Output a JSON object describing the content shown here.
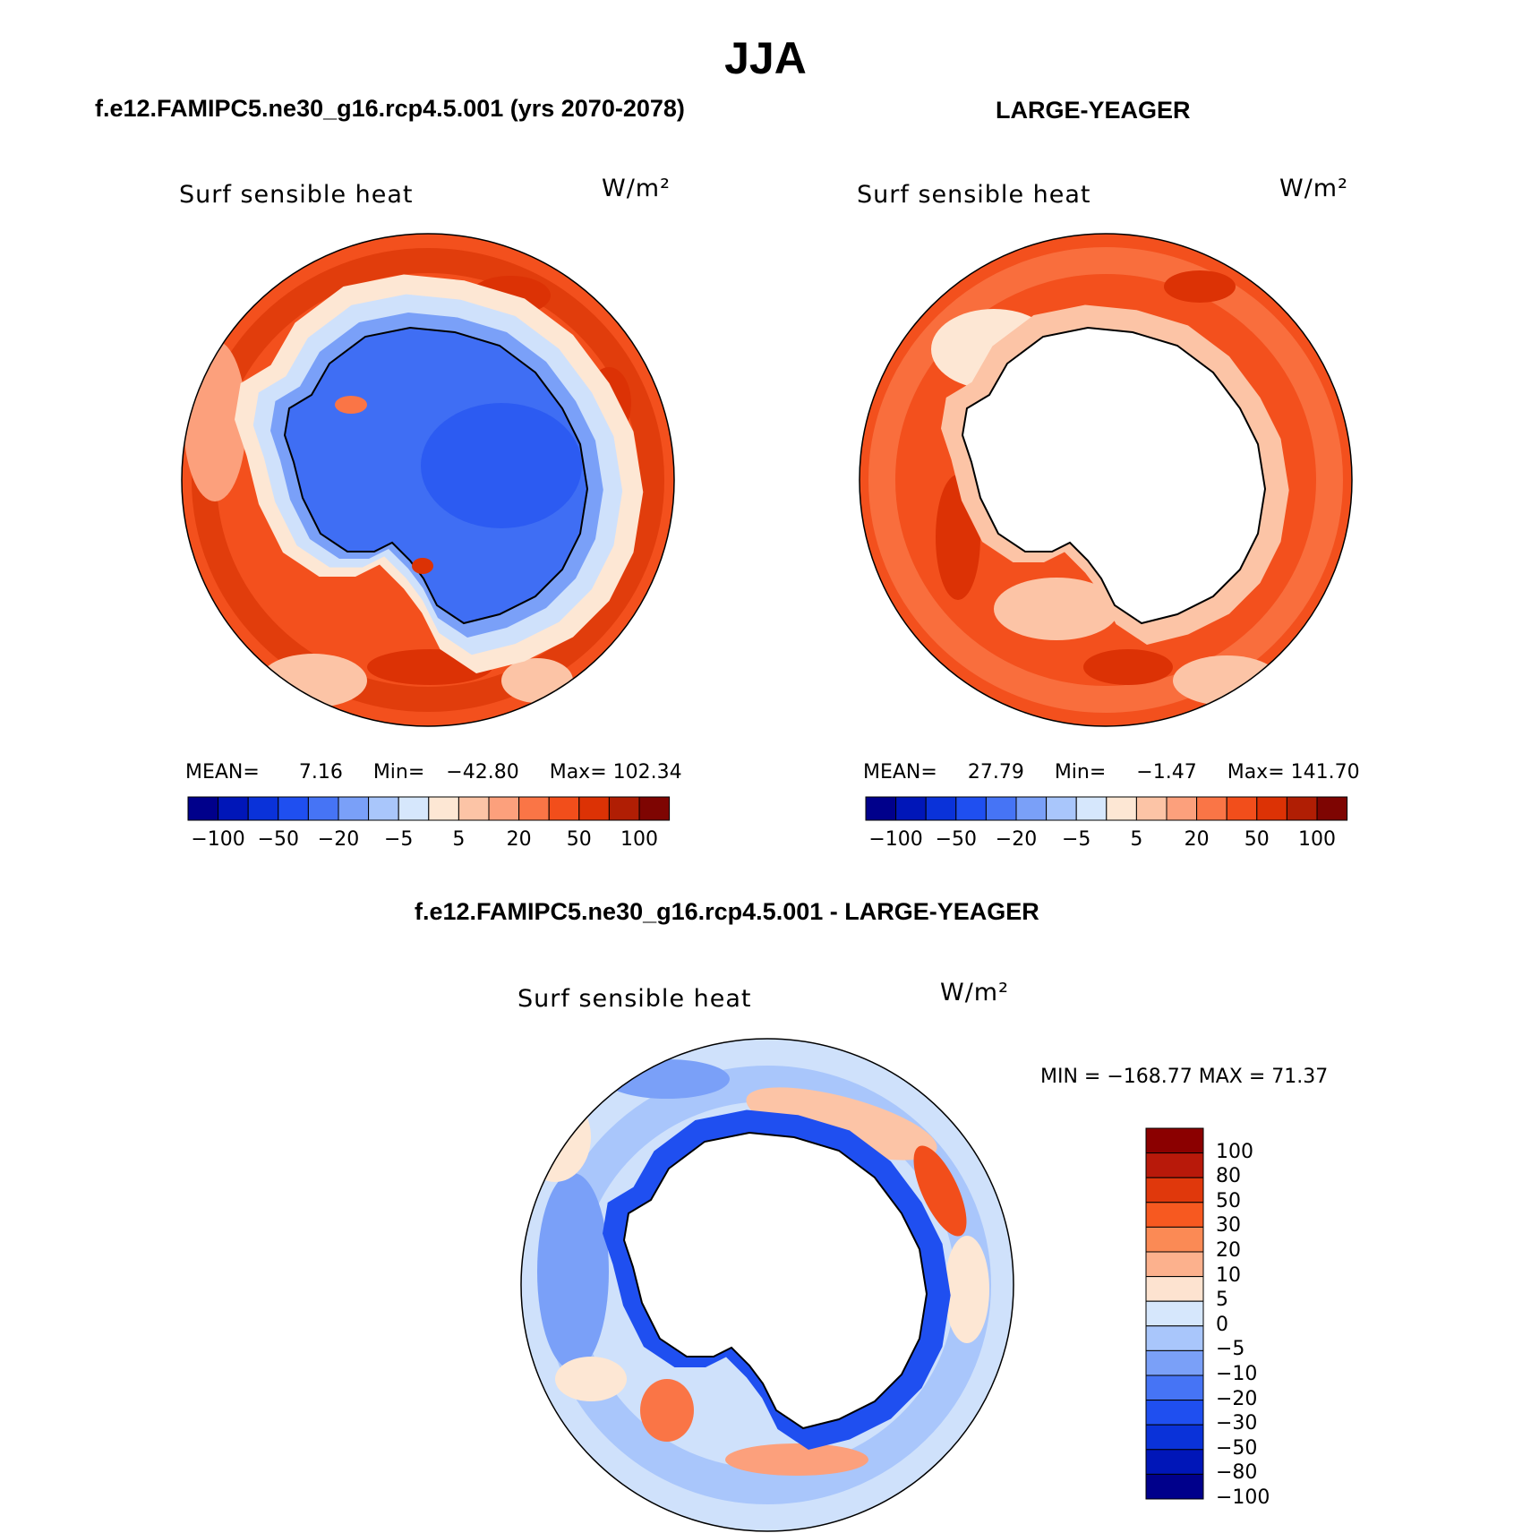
{
  "figure": {
    "title": "JJA",
    "left_title": "f.e12.FAMIPC5.ne30_g16.rcp4.5.001 (yrs 2070-2078)",
    "right_title": "LARGE-YEAGER",
    "diff_title": "f.e12.FAMIPC5.ne30_g16.rcp4.5.001 - LARGE-YEAGER"
  },
  "panels": {
    "left": {
      "variable": "Surf sensible heat",
      "units": "W/m²",
      "mean_label": "MEAN=",
      "mean": "7.16",
      "min_label": "Min=",
      "min": "−42.80",
      "max_label": "Max=",
      "max": "102.34"
    },
    "right": {
      "variable": "Surf sensible heat",
      "units": "W/m²",
      "mean_label": "MEAN=",
      "mean": "27.79",
      "min_label": "Min=",
      "min": "−1.47",
      "max_label": "Max=",
      "max": "141.70"
    },
    "diff": {
      "variable": "Surf sensible heat",
      "units": "W/m²",
      "minmax_text": "MIN = −168.77 MAX =  71.37"
    }
  },
  "horizontal_colorbar": {
    "colors": [
      "#00008b",
      "#0016b8",
      "#0a32d9",
      "#1f4ff0",
      "#4674f5",
      "#7aa0f8",
      "#a9c6fb",
      "#d6e7fc",
      "#fde7d4",
      "#fcc4a6",
      "#fca07c",
      "#fa7546",
      "#f24e1b",
      "#dc3205",
      "#b01e04",
      "#7e0502"
    ],
    "tick_labels": [
      "−100",
      "−50",
      "−20",
      "−5",
      "5",
      "20",
      "50",
      "100"
    ]
  },
  "vertical_colorbar": {
    "colors": [
      "#8b0000",
      "#b8190a",
      "#e0380c",
      "#f75920",
      "#fb8a55",
      "#fcb18d",
      "#fde3d0",
      "#d6e7fc",
      "#a9c6fb",
      "#7aa0f8",
      "#4674f5",
      "#1f4ff0",
      "#0a32d9",
      "#0016b8",
      "#00008b"
    ],
    "tick_labels": [
      "100",
      "80",
      "50",
      "30",
      "20",
      "10",
      "5",
      "0",
      "−5",
      "−10",
      "−20",
      "−30",
      "−50",
      "−80",
      "−100"
    ]
  },
  "map_colors": {
    "ocean_red": "#f3501d",
    "ocean_red_dark": "#d93406",
    "ocean_peach": "#fca07c",
    "ice_blue": "#3f6ef4",
    "ice_blue_dark": "#1f4ff0",
    "land_white": "#ffffff",
    "light_blue": "#cfe1fb",
    "light_peach": "#fde7d4",
    "coast": "#000000"
  },
  "chart_data": {
    "type": "heatmap",
    "title": "JJA",
    "projection": "south polar stereographic",
    "panels": [
      {
        "name": "f.e12.FAMIPC5.ne30_g16.rcp4.5.001 (yrs 2070-2078)",
        "variable": "Surf sensible heat",
        "units": "W/m²",
        "mean": 7.16,
        "min": -42.8,
        "max": 102.34,
        "levels": [
          -100,
          -80,
          -50,
          -30,
          -20,
          -10,
          -5,
          0,
          5,
          10,
          20,
          30,
          50,
          80,
          100
        ]
      },
      {
        "name": "LARGE-YEAGER",
        "variable": "Surf sensible heat",
        "units": "W/m²",
        "mean": 27.79,
        "min": -1.47,
        "max": 141.7,
        "levels": [
          -100,
          -80,
          -50,
          -30,
          -20,
          -10,
          -5,
          0,
          5,
          10,
          20,
          30,
          50,
          80,
          100
        ]
      },
      {
        "name": "f.e12.FAMIPC5.ne30_g16.rcp4.5.001 - LARGE-YEAGER",
        "variable": "Surf sensible heat",
        "units": "W/m²",
        "min": -168.77,
        "max": 71.37,
        "levels": [
          -100,
          -80,
          -50,
          -30,
          -20,
          -10,
          -5,
          0,
          5,
          10,
          20,
          30,
          50,
          80,
          100
        ]
      }
    ]
  }
}
